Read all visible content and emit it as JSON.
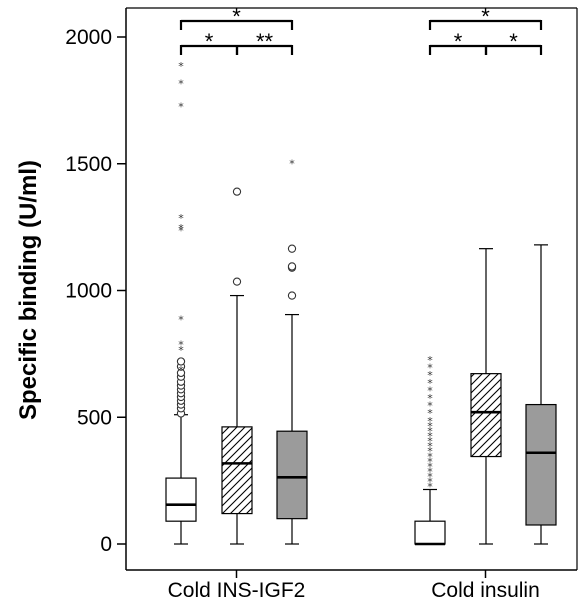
{
  "chart_data": {
    "type": "boxplot",
    "ylabel": "Specific binding (U/ml)",
    "ylim": [
      -80,
      2130
    ],
    "yticks": [
      0,
      500,
      1000,
      1500,
      2000
    ],
    "grid": false,
    "groups": [
      {
        "label": "Cold INS-IGF2",
        "boxes": [
          {
            "fill": "white",
            "min": 0,
            "q1": 90,
            "median": 155,
            "q3": 260,
            "max": 510,
            "outliers": [
              515,
              535,
              550,
              565,
              580,
              595,
              610,
              625,
              640,
              660,
              675,
              700,
              720
            ],
            "extremes": [
              690,
              770,
              790,
              890,
              1240,
              1250,
              1290,
              1730,
              1820,
              1890
            ]
          },
          {
            "fill": "hatched",
            "min": 0,
            "q1": 120,
            "median": 318,
            "q3": 462,
            "max": 980,
            "outliers": [
              1035,
              1390
            ],
            "extremes": []
          },
          {
            "fill": "gray",
            "min": 0,
            "q1": 100,
            "median": 263,
            "q3": 445,
            "max": 905,
            "outliers": [
              980,
              1090,
              1095,
              1165
            ],
            "extremes": [
              1505
            ]
          }
        ],
        "significance": [
          {
            "from": 0,
            "to": 2,
            "label": "*"
          },
          {
            "from": 0,
            "to": 1,
            "label": "*"
          },
          {
            "from": 1,
            "to": 2,
            "label": "**"
          }
        ]
      },
      {
        "label": "Cold insulin",
        "boxes": [
          {
            "fill": "white",
            "min": 0,
            "q1": 0,
            "median": 0,
            "q3": 90,
            "max": 215,
            "outliers": [],
            "extremes": [
              230,
              250,
              270,
              290,
              310,
              330,
              350,
              370,
              390,
              410,
              430,
              450,
              470,
              490,
              520,
              550,
              580,
              610,
              640,
              670,
              700,
              730
            ]
          },
          {
            "fill": "hatched",
            "min": 0,
            "q1": 345,
            "median": 520,
            "q3": 672,
            "max": 1165,
            "outliers": [],
            "extremes": []
          },
          {
            "fill": "gray",
            "min": 0,
            "q1": 75,
            "median": 360,
            "q3": 550,
            "max": 1180,
            "outliers": [],
            "extremes": []
          }
        ],
        "significance": [
          {
            "from": 0,
            "to": 2,
            "label": "*"
          },
          {
            "from": 0,
            "to": 1,
            "label": "*"
          },
          {
            "from": 1,
            "to": 2,
            "label": "*"
          }
        ]
      }
    ]
  }
}
